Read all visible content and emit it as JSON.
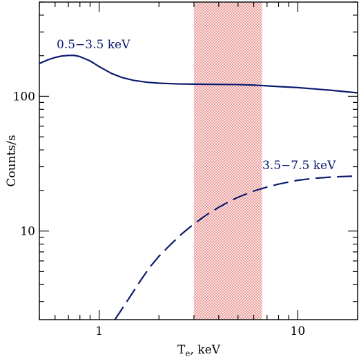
{
  "chart_data": {
    "type": "line",
    "title": "",
    "xlabel": "T",
    "xlabel_sub": "e",
    "xlabel_suffix": ", keV",
    "ylabel": "Counts/s",
    "x_scale": "log",
    "y_scale": "log",
    "xlim": [
      0.5,
      20
    ],
    "ylim": [
      2.2,
      500
    ],
    "x_tick_labels": [
      {
        "value": 1,
        "label": "1"
      },
      {
        "value": 10,
        "label": "10"
      }
    ],
    "y_tick_labels": [
      {
        "value": 10,
        "label": "10"
      },
      {
        "value": 100,
        "label": "100"
      }
    ],
    "grid": false,
    "shaded_band": {
      "x_range": [
        3.0,
        6.6
      ],
      "color": "#d9534f",
      "pattern": "dotted-hatch"
    },
    "series": [
      {
        "name": "0.5–3.5 keV",
        "style": "solid",
        "color": "#0a1a6e",
        "x": [
          0.5,
          0.55,
          0.6,
          0.65,
          0.7,
          0.75,
          0.8,
          0.9,
          1.0,
          1.15,
          1.3,
          1.5,
          1.75,
          2.0,
          2.5,
          3.0,
          4.0,
          5.0,
          6.0,
          7.0,
          8.0,
          10.0,
          12.0,
          15.0,
          20.0
        ],
        "y": [
          175,
          186,
          194,
          199,
          201,
          201,
          197,
          183,
          166,
          148,
          138,
          131,
          127,
          125,
          123.5,
          123,
          122.5,
          122,
          121,
          119.5,
          118,
          116,
          113.5,
          110.5,
          106
        ]
      },
      {
        "name": "3.5–7.5 keV",
        "style": "dashed",
        "color": "#0a1a6e",
        "x": [
          1.2,
          1.4,
          1.6,
          1.8,
          2.0,
          2.3,
          2.6,
          3.0,
          3.5,
          4.0,
          4.5,
          5.0,
          6.0,
          7.0,
          8.0,
          10.0,
          12.0,
          15.0,
          20.0
        ],
        "y": [
          2.2,
          3.1,
          4.2,
          5.4,
          6.5,
          8.0,
          9.5,
          11.3,
          13.3,
          15.0,
          16.5,
          17.8,
          19.8,
          21.2,
          22.3,
          23.8,
          24.6,
          25.2,
          25.6
        ]
      }
    ]
  },
  "annotations": {
    "series1_label": "0.5−3.5 keV",
    "series2_label": "3.5−7.5 keV"
  }
}
